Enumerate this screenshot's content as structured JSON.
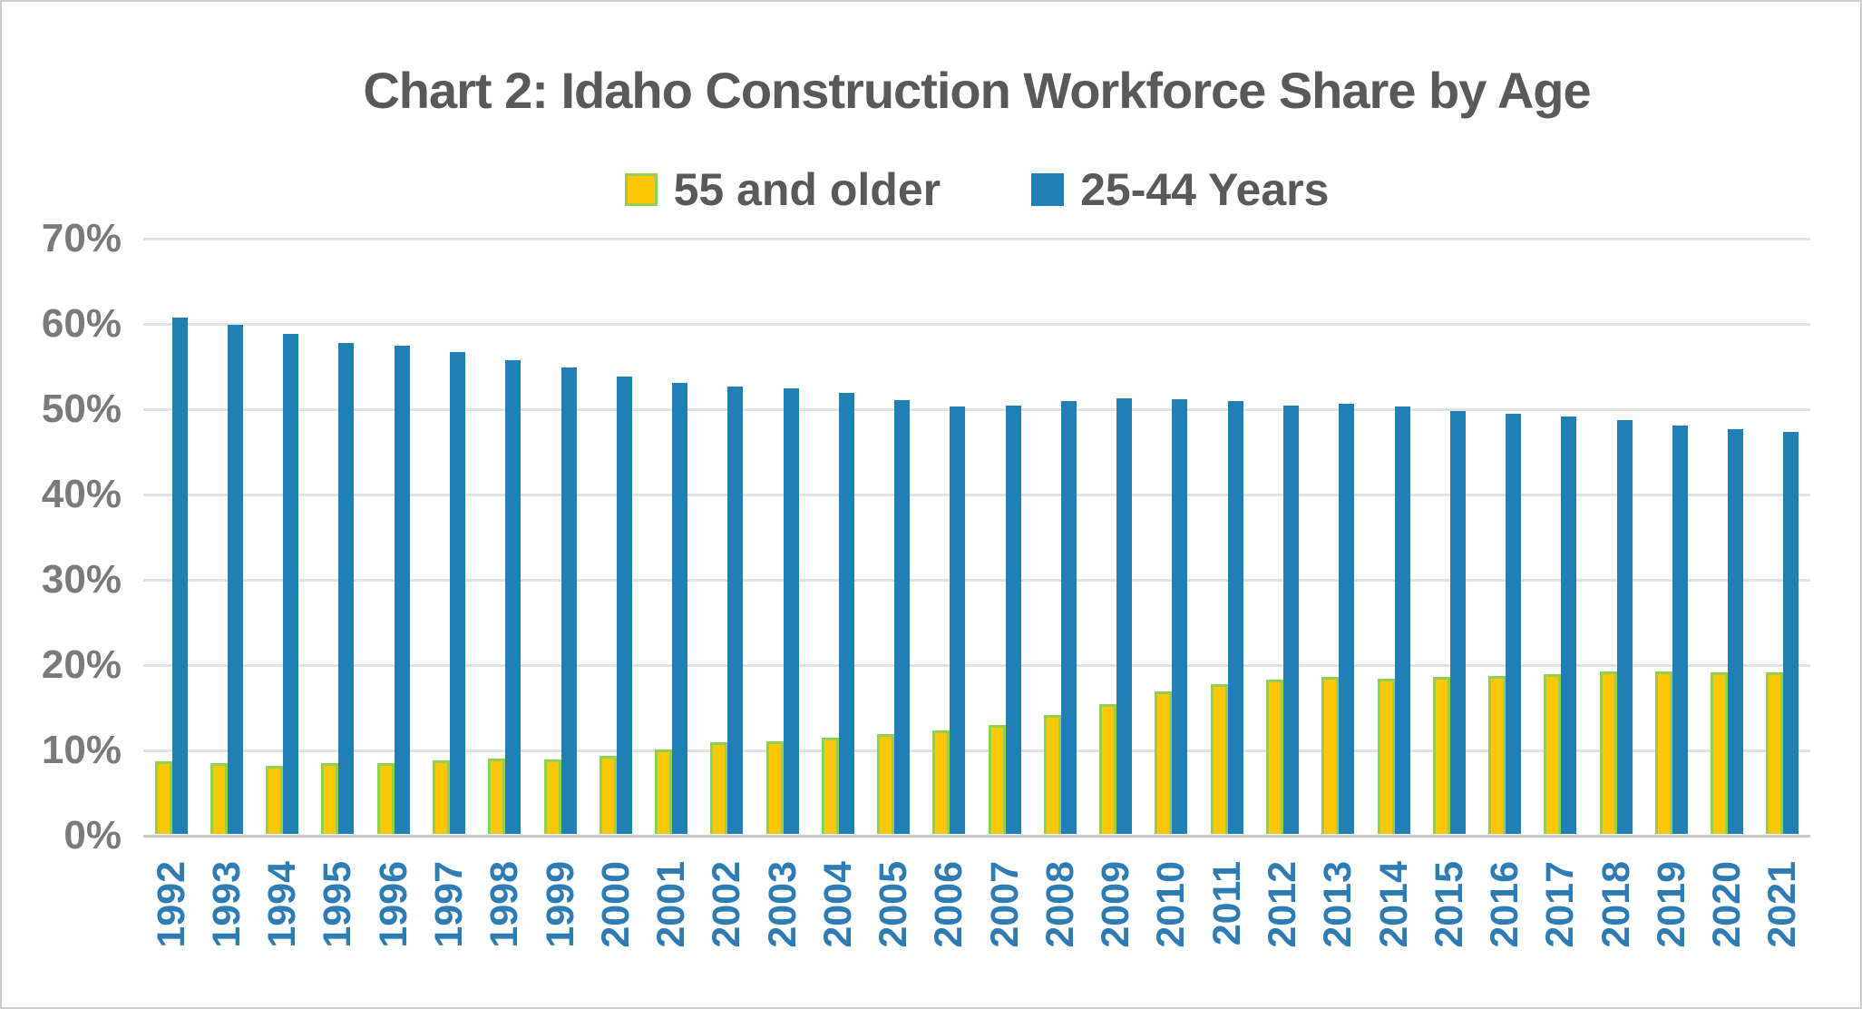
{
  "title": "Chart 2: Idaho Construction Workforce Share by Age",
  "legend": {
    "items": [
      {
        "label": "55 and older",
        "swatch_color": "#FCC805",
        "swatch_border": "#92D050"
      },
      {
        "label": "25-44 Years",
        "swatch_color": "#2080B5"
      }
    ]
  },
  "y_axis": {
    "ticks": [
      "0%",
      "10%",
      "20%",
      "30%",
      "40%",
      "50%",
      "60%",
      "70%"
    ],
    "min": 0,
    "max": 70
  },
  "chart_data": {
    "type": "bar",
    "title": "Chart 2: Idaho Construction Workforce Share by Age",
    "categories": [
      "1992",
      "1993",
      "1994",
      "1995",
      "1996",
      "1997",
      "1998",
      "1999",
      "2000",
      "2001",
      "2002",
      "2003",
      "2004",
      "2005",
      "2006",
      "2007",
      "2008",
      "2009",
      "2010",
      "2011",
      "2012",
      "2013",
      "2014",
      "2015",
      "2016",
      "2017",
      "2018",
      "2019",
      "2020",
      "2021"
    ],
    "series": [
      {
        "name": "55 and older",
        "color": "#FCC805",
        "border_color": "#92D050",
        "values": [
          8.5,
          8.3,
          8.0,
          8.3,
          8.3,
          8.6,
          8.8,
          8.7,
          9.2,
          9.9,
          10.7,
          10.9,
          11.3,
          11.7,
          12.1,
          12.8,
          13.9,
          15.2,
          16.7,
          17.6,
          18.1,
          18.4,
          18.2,
          18.4,
          18.5,
          18.7,
          19.0,
          19.1,
          18.9,
          18.9
        ]
      },
      {
        "name": "25-44 Years",
        "color": "#2080B5",
        "values": [
          60.5,
          59.7,
          58.6,
          57.6,
          57.2,
          56.5,
          55.5,
          54.7,
          53.6,
          52.9,
          52.5,
          52.2,
          51.7,
          50.9,
          50.1,
          50.2,
          50.7,
          51.1,
          51.0,
          50.7,
          50.2,
          50.4,
          50.1,
          49.6,
          49.3,
          48.9,
          48.5,
          47.9,
          47.5,
          47.1
        ]
      }
    ],
    "xlabel": "",
    "ylabel": "",
    "ylim": [
      0,
      70
    ],
    "y_tick_step": 10,
    "y_tick_format": "percent",
    "grid": true,
    "x_label_rotation": -90,
    "legend_position": "top",
    "colors": {
      "gridline": "#e2e2e2",
      "axis_line": "#c9c9c9",
      "title_text": "#595959",
      "y_tick_text": "#7a7a7a",
      "x_tick_text": "#2E7CB4"
    }
  }
}
